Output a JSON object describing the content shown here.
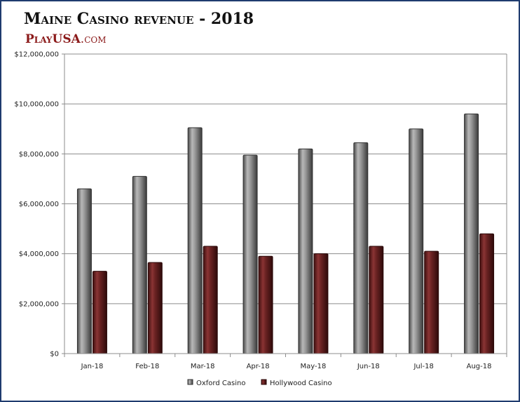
{
  "header": {
    "title": "Maine Casino revenue - 2018",
    "brand_strong": "PlayUSA",
    "brand_suffix": ".com"
  },
  "colors": {
    "oxford": "#8a8a8a",
    "hollywood": "#6b2323",
    "border": "#1f3b6f"
  },
  "chart_data": {
    "type": "bar",
    "title": "Maine Casino revenue - 2018",
    "xlabel": "",
    "ylabel": "",
    "categories": [
      "Jan-18",
      "Feb-18",
      "Mar-18",
      "Apr-18",
      "May-18",
      "Jun-18",
      "Jul-18",
      "Aug-18"
    ],
    "series": [
      {
        "name": "Oxford Casino",
        "values": [
          6600000,
          7100000,
          9050000,
          7950000,
          8200000,
          8450000,
          9000000,
          9600000
        ]
      },
      {
        "name": "Hollywood Casino",
        "values": [
          3300000,
          3650000,
          4300000,
          3900000,
          4000000,
          4300000,
          4100000,
          4800000
        ]
      }
    ],
    "ylim": [
      0,
      12000000
    ],
    "yticks": [
      0,
      2000000,
      4000000,
      6000000,
      8000000,
      10000000,
      12000000
    ],
    "ytick_labels": [
      "$0",
      "$2,000,000",
      "$4,000,000",
      "$6,000,000",
      "$8,000,000",
      "$10,000,000",
      "$12,000,000"
    ],
    "grid": true,
    "legend": "bottom"
  }
}
